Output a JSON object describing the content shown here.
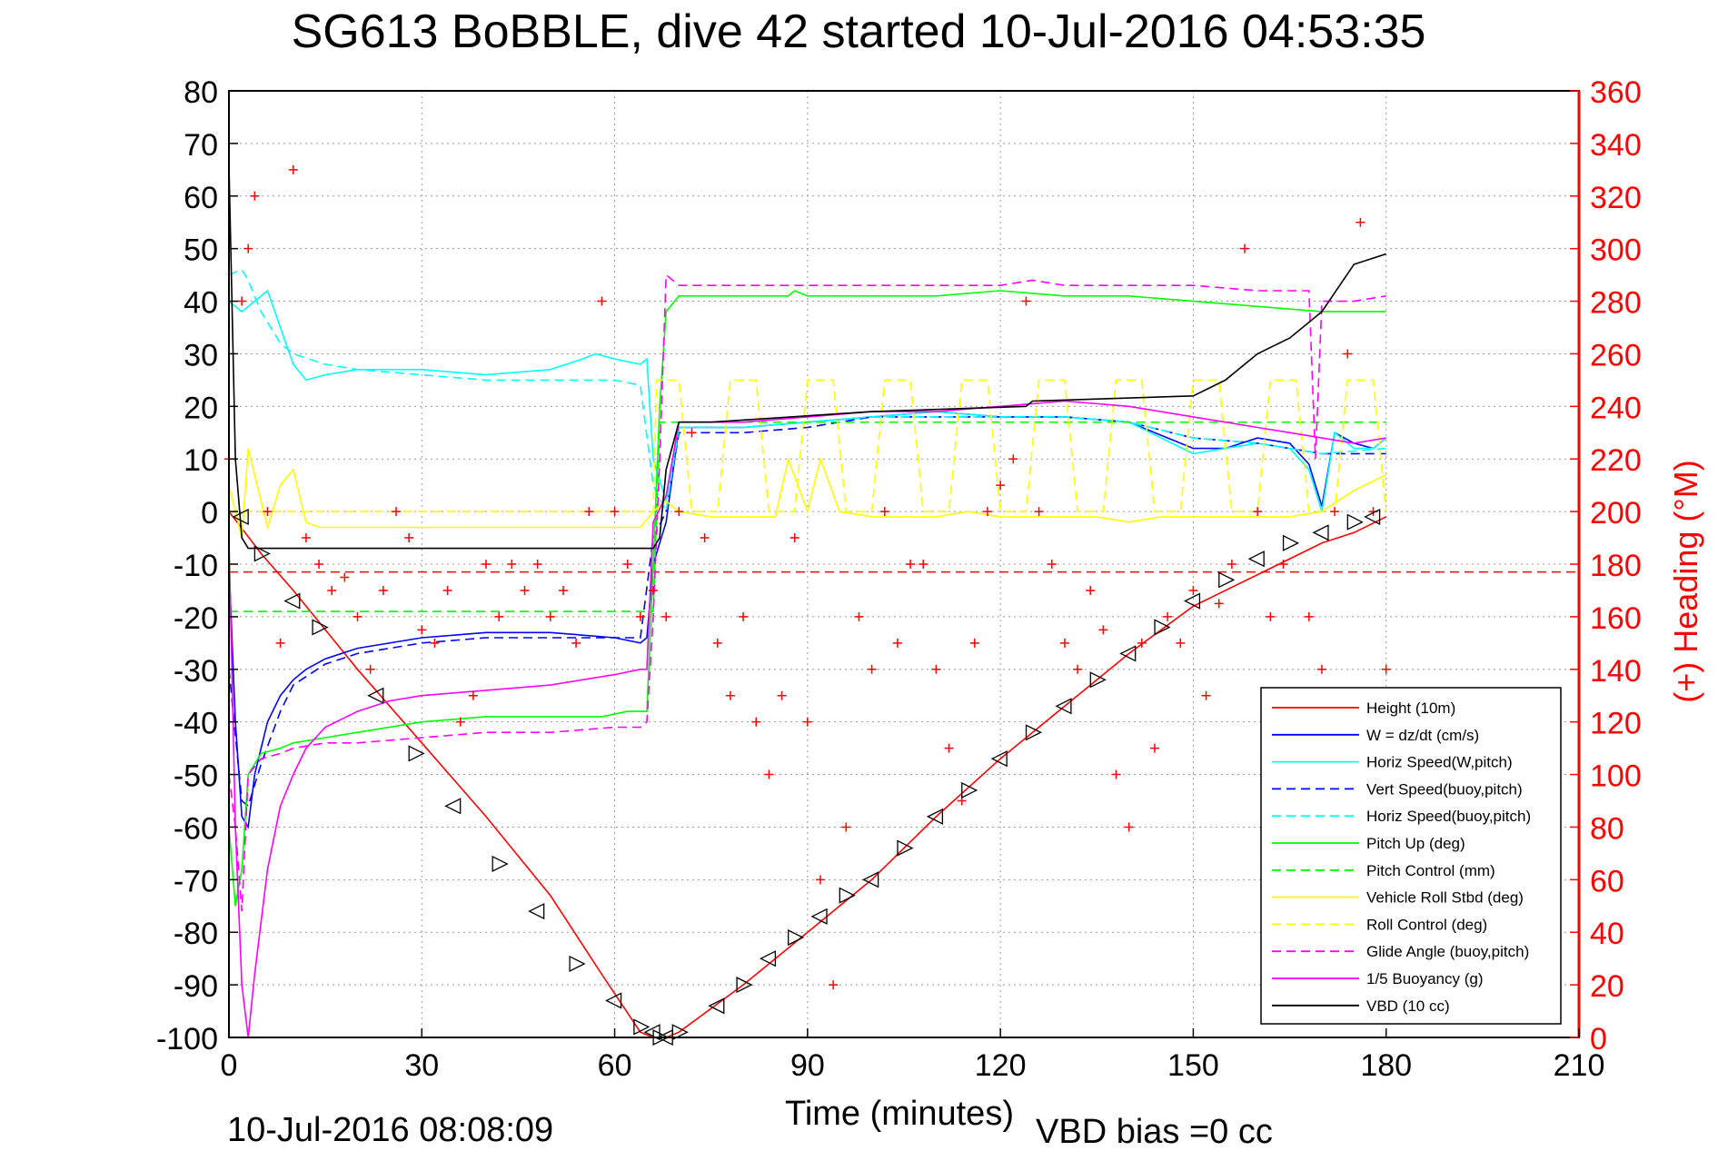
{
  "chart_data": {
    "type": "line",
    "title": "SG613 BoBBLE, dive 42 started 10-Jul-2016 04:53:35",
    "xlabel": "Time (minutes)",
    "ylabel_right": "(+) Heading (°M)",
    "footer_left": "10-Jul-2016 08:08:09",
    "footer_right": "VBD bias =0 cc",
    "xlim": [
      0,
      210
    ],
    "ylim": [
      -100,
      80
    ],
    "ylim_right": [
      0,
      360
    ],
    "xticks": [
      "0",
      "30",
      "60",
      "90",
      "120",
      "150",
      "180",
      "210"
    ],
    "yticks": [
      "80",
      "70",
      "60",
      "50",
      "40",
      "30",
      "20",
      "10",
      "0",
      "-10",
      "-20",
      "-30",
      "-40",
      "-50",
      "-60",
      "-70",
      "-80",
      "-90",
      "-100"
    ],
    "yticks_right": [
      "360",
      "340",
      "320",
      "300",
      "280",
      "260",
      "240",
      "220",
      "200",
      "180",
      "160",
      "140",
      "120",
      "100",
      "80",
      "60",
      "40",
      "20",
      "0"
    ],
    "grid": true,
    "legend_position": "bottom-right",
    "colors": {
      "red": "#ff0000",
      "blue": "#0000ff",
      "cyan": "#00ffff",
      "green": "#00ff00",
      "yellow": "#ffff00",
      "magenta": "#ff00ff",
      "black": "#000000"
    },
    "series": [
      {
        "name": "Height (10m)",
        "color": "#ff0000",
        "style": "solid",
        "x": [
          0,
          5,
          10,
          20,
          30,
          40,
          50,
          58,
          64,
          66,
          68,
          70,
          80,
          90,
          100,
          110,
          120,
          130,
          140,
          150,
          160,
          170,
          175,
          180
        ],
        "y": [
          0,
          -8,
          -15,
          -30,
          -44,
          -58,
          -73,
          -88,
          -99,
          -100,
          -100,
          -99,
          -90,
          -80,
          -70,
          -58,
          -47,
          -37,
          -27,
          -18,
          -12,
          -6,
          -4,
          -1
        ]
      },
      {
        "name": "W = dz/dt (cm/s)",
        "color": "#0000ff",
        "style": "solid",
        "x": [
          0,
          1,
          2,
          3,
          4,
          5,
          6,
          8,
          10,
          12,
          15,
          20,
          30,
          40,
          50,
          60,
          64,
          65,
          66,
          68,
          70,
          80,
          90,
          100,
          110,
          120,
          130,
          140,
          150,
          155,
          160,
          165,
          168,
          170,
          172,
          175,
          178,
          180
        ],
        "y": [
          -10,
          -40,
          -58,
          -60,
          -50,
          -45,
          -40,
          -35,
          -32,
          -30,
          -28,
          -26,
          -24,
          -23,
          -23,
          -24,
          -25,
          -24,
          -10,
          -2,
          16,
          16,
          17,
          18,
          19,
          18,
          18,
          17,
          12,
          12,
          14,
          13,
          9,
          1,
          15,
          13,
          12,
          14
        ]
      },
      {
        "name": "Horiz Speed(W,pitch)",
        "color": "#00ffff",
        "style": "solid",
        "x": [
          0,
          2,
          4,
          6,
          8,
          10,
          12,
          15,
          20,
          30,
          40,
          50,
          55,
          57,
          60,
          64,
          65,
          66,
          68,
          70,
          80,
          90,
          100,
          110,
          120,
          130,
          140,
          150,
          155,
          160,
          165,
          168,
          170,
          172,
          175,
          178,
          180
        ],
        "y": [
          40,
          38,
          40,
          42,
          35,
          28,
          25,
          26,
          27,
          27,
          26,
          27,
          29,
          30,
          29,
          28,
          29,
          10,
          2,
          16,
          16,
          17,
          18,
          19,
          18,
          18,
          17,
          11,
          12,
          13,
          12,
          8,
          0,
          15,
          12,
          12,
          14
        ]
      },
      {
        "name": "Vert Speed(buoy,pitch)",
        "color": "#0000ff",
        "style": "dashed",
        "x": [
          0,
          2,
          3,
          5,
          8,
          10,
          15,
          20,
          30,
          40,
          50,
          60,
          64,
          66,
          68,
          70,
          80,
          90,
          100,
          110,
          120,
          130,
          140,
          150,
          160,
          170,
          180
        ],
        "y": [
          -30,
          -55,
          -56,
          -48,
          -38,
          -33,
          -29,
          -27,
          -25,
          -24,
          -24,
          -24,
          -24,
          -5,
          0,
          15,
          15,
          16,
          18,
          18,
          18,
          18,
          17,
          14,
          13,
          11,
          11
        ]
      },
      {
        "name": "Horiz Speed(buoy,pitch)",
        "color": "#00ffff",
        "style": "dashed",
        "x": [
          0,
          2,
          3,
          5,
          8,
          10,
          15,
          20,
          30,
          40,
          50,
          60,
          64,
          66,
          68,
          70,
          80,
          90,
          100,
          110,
          120,
          130,
          140,
          150,
          160,
          170,
          180
        ],
        "y": [
          45,
          46,
          44,
          38,
          32,
          30,
          28,
          27,
          26,
          25,
          25,
          25,
          24,
          5,
          0,
          16,
          16,
          17,
          18,
          18,
          18,
          18,
          17,
          14,
          13,
          11,
          12
        ]
      },
      {
        "name": "Pitch Up (deg)",
        "color": "#00ff00",
        "style": "solid",
        "x": [
          0,
          1,
          2,
          3,
          5,
          8,
          10,
          15,
          20,
          30,
          40,
          50,
          58,
          62,
          64,
          65,
          66,
          67,
          68,
          70,
          80,
          87,
          88,
          90,
          100,
          110,
          120,
          130,
          140,
          150,
          160,
          170,
          180
        ],
        "y": [
          -60,
          -75,
          -68,
          -50,
          -46,
          -45,
          -44,
          -43,
          -42,
          -40,
          -39,
          -39,
          -39,
          -38,
          -38,
          -38,
          -10,
          20,
          38,
          41,
          41,
          41,
          42,
          41,
          41,
          41,
          42,
          41,
          41,
          40,
          39,
          38,
          38
        ]
      },
      {
        "name": "Pitch Control (mm)",
        "color": "#00ff00",
        "style": "dashed",
        "x": [
          0,
          66,
          67,
          180
        ],
        "y": [
          -19,
          -19,
          17,
          17
        ]
      },
      {
        "name": "Vehicle Roll Stbd (deg)",
        "color": "#ffff00",
        "style": "solid",
        "x": [
          0,
          2,
          3,
          5,
          6,
          8,
          10,
          12,
          14,
          20,
          30,
          40,
          50,
          60,
          64,
          66,
          68,
          70,
          75,
          80,
          85,
          87,
          90,
          92,
          95,
          100,
          105,
          110,
          115,
          120,
          125,
          130,
          135,
          140,
          145,
          150,
          155,
          160,
          165,
          170,
          175,
          180
        ],
        "y": [
          5,
          -5,
          12,
          2,
          -3,
          5,
          8,
          -2,
          -3,
          -3,
          -3,
          -3,
          -3,
          -3,
          -3,
          0,
          2,
          0,
          -1,
          -1,
          -1,
          10,
          0,
          10,
          0,
          -1,
          -1,
          -1,
          0,
          -1,
          -1,
          -1,
          -1,
          -2,
          -1,
          -1,
          -1,
          -1,
          -1,
          0,
          4,
          7
        ]
      },
      {
        "name": "Roll Control (deg)",
        "color": "#ffff00",
        "style": "dashed",
        "x": [
          0,
          66,
          66.5,
          70,
          72,
          76,
          78,
          82,
          84,
          88,
          90,
          94,
          96,
          100,
          102,
          106,
          108,
          112,
          114,
          118,
          120,
          124,
          126,
          130,
          132,
          136,
          138,
          142,
          144,
          148,
          150,
          154,
          156,
          160,
          162,
          166,
          168,
          172,
          174,
          178,
          180
        ],
        "y": [
          0,
          0,
          25,
          25,
          0,
          0,
          25,
          25,
          0,
          0,
          25,
          25,
          0,
          0,
          25,
          25,
          0,
          0,
          25,
          25,
          0,
          0,
          25,
          25,
          0,
          0,
          25,
          25,
          0,
          0,
          25,
          25,
          0,
          0,
          25,
          25,
          0,
          0,
          25,
          25,
          0
        ]
      },
      {
        "name": "Glide Angle (buoy,pitch)",
        "color": "#ff00ff",
        "style": "dashed",
        "x": [
          0,
          1,
          2,
          3,
          5,
          8,
          10,
          15,
          20,
          30,
          40,
          50,
          60,
          64,
          65,
          66,
          67,
          68,
          70,
          80,
          90,
          100,
          110,
          120,
          125,
          130,
          140,
          150,
          160,
          168,
          169,
          170,
          175,
          180
        ],
        "y": [
          -50,
          -60,
          -76,
          -50,
          -47,
          -46,
          -45,
          -44,
          -44,
          -43,
          -42,
          -42,
          -41,
          -41,
          -40,
          -20,
          10,
          45,
          43,
          43,
          43,
          43,
          43,
          43,
          44,
          43,
          43,
          43,
          42,
          42,
          10,
          40,
          40,
          41
        ]
      },
      {
        "name": "1/5 Buoyancy (g)",
        "color": "#ff00ff",
        "style": "solid",
        "x": [
          0,
          1,
          2,
          3,
          4,
          6,
          8,
          10,
          12,
          15,
          20,
          25,
          30,
          40,
          50,
          60,
          64,
          65,
          66,
          68,
          70,
          80,
          90,
          100,
          110,
          120,
          130,
          140,
          150,
          160,
          170,
          175,
          180
        ],
        "y": [
          -5,
          -60,
          -90,
          -100,
          -88,
          -68,
          -56,
          -50,
          -45,
          -41,
          -38,
          -36,
          -35,
          -34,
          -33,
          -31,
          -30,
          -30,
          -2,
          3,
          17,
          17,
          18,
          19,
          19,
          20,
          21,
          20,
          18,
          16,
          14,
          13,
          14
        ]
      },
      {
        "name": "VBD (10 cc)",
        "color": "#000000",
        "style": "solid",
        "x": [
          0,
          1,
          2,
          3,
          66,
          67,
          68,
          70,
          75,
          100,
          124,
          125,
          150,
          155,
          160,
          165,
          170,
          175,
          180
        ],
        "y": [
          66,
          10,
          -5,
          -7,
          -7,
          -5,
          8,
          17,
          17,
          19,
          20,
          21,
          22,
          25,
          30,
          33,
          38,
          47,
          49
        ]
      }
    ],
    "heading": {
      "name": "(+) Heading (°M)",
      "color": "#ff0000",
      "marker": "+",
      "x": [
        0,
        2,
        3,
        4,
        6,
        8,
        10,
        12,
        14,
        16,
        18,
        20,
        22,
        24,
        26,
        28,
        30,
        32,
        34,
        36,
        38,
        40,
        42,
        44,
        46,
        48,
        50,
        52,
        54,
        56,
        58,
        60,
        62,
        64,
        66,
        68,
        70,
        72,
        74,
        76,
        78,
        80,
        82,
        84,
        86,
        88,
        90,
        92,
        94,
        96,
        98,
        100,
        102,
        104,
        106,
        108,
        110,
        112,
        114,
        116,
        118,
        120,
        122,
        124,
        126,
        128,
        130,
        132,
        134,
        136,
        138,
        140,
        142,
        144,
        146,
        148,
        150,
        152,
        154,
        156,
        158,
        160,
        162,
        164,
        166,
        168,
        170,
        172,
        174,
        176,
        178,
        180
      ],
      "y": [
        220,
        280,
        300,
        320,
        200,
        150,
        330,
        190,
        180,
        170,
        175,
        160,
        140,
        170,
        200,
        190,
        155,
        150,
        170,
        120,
        130,
        180,
        160,
        180,
        170,
        180,
        160,
        170,
        150,
        200,
        280,
        200,
        180,
        160,
        170,
        160,
        200,
        230,
        190,
        150,
        130,
        160,
        120,
        100,
        130,
        190,
        120,
        60,
        20,
        80,
        160,
        140,
        200,
        150,
        180,
        180,
        140,
        110,
        90,
        150,
        200,
        210,
        220,
        280,
        200,
        180,
        150,
        140,
        170,
        155,
        100,
        80,
        150,
        110,
        160,
        150,
        170,
        130,
        165,
        180,
        300,
        200,
        160,
        180,
        120,
        160,
        140,
        200,
        260,
        310,
        200,
        140
      ]
    },
    "bias_line": {
      "name": "",
      "color": "#ff0000",
      "style": "dashed",
      "y": -11.5
    },
    "dive_markers": {
      "x": [
        2,
        5,
        10,
        14,
        23,
        29,
        35,
        42,
        48,
        54,
        60,
        64,
        66,
        67,
        68,
        70,
        76,
        80,
        84,
        88,
        92,
        96,
        100,
        105,
        110,
        115,
        120,
        125,
        130,
        135,
        140,
        145,
        150,
        155,
        160,
        165,
        170,
        175,
        178
      ],
      "y": [
        -1,
        -8,
        -17,
        -22,
        -35,
        -46,
        -56,
        -67,
        -76,
        -86,
        -93,
        -98,
        -99,
        -100,
        -100,
        -99,
        -94,
        -90,
        -85,
        -81,
        -77,
        -73,
        -70,
        -64,
        -58,
        -53,
        -47,
        -42,
        -37,
        -32,
        -27,
        -22,
        -17,
        -13,
        -9,
        -6,
        -4,
        -2,
        -1
      ]
    }
  }
}
